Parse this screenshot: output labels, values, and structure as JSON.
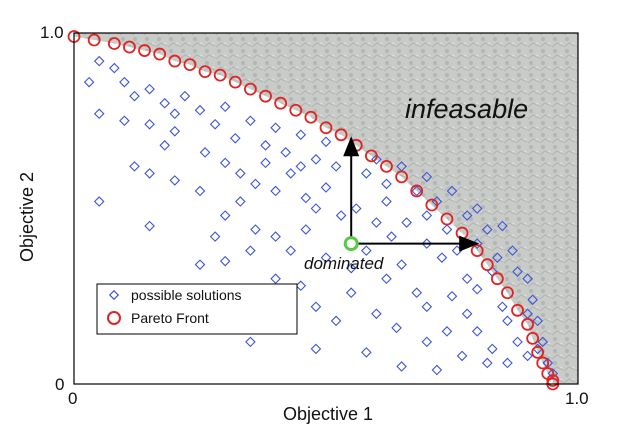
{
  "chart_data": {
    "type": "scatter",
    "xlabel": "Objective 1",
    "ylabel": "Objective 2",
    "xlim": [
      0,
      1.0
    ],
    "ylim": [
      0,
      1.0
    ],
    "x_ticks": [
      "0",
      "1.0"
    ],
    "y_ticks": [
      "0",
      "1.0"
    ],
    "region_label": "infeasable",
    "annotation": "dominated",
    "dominated_point": {
      "x": 0.55,
      "y": 0.4
    },
    "legend": {
      "position": "bottom-left",
      "entries": [
        "possible solutions",
        "Pareto Front"
      ]
    },
    "colors": {
      "possible_solutions": "#3d56d6",
      "pareto_front": "#e02424",
      "dominated_marker": "#59c84a",
      "infeasible_region": "#c4c7c4",
      "arrow": "#000000"
    },
    "series": [
      {
        "name": "possible solutions",
        "marker": "diamond",
        "points": [
          [
            0.05,
            0.92
          ],
          [
            0.08,
            0.9
          ],
          [
            0.03,
            0.86
          ],
          [
            0.1,
            0.86
          ],
          [
            0.12,
            0.82
          ],
          [
            0.15,
            0.84
          ],
          [
            0.05,
            0.77
          ],
          [
            0.18,
            0.8
          ],
          [
            0.2,
            0.77
          ],
          [
            0.22,
            0.82
          ],
          [
            0.25,
            0.78
          ],
          [
            0.28,
            0.74
          ],
          [
            0.3,
            0.79
          ],
          [
            0.32,
            0.7
          ],
          [
            0.35,
            0.75
          ],
          [
            0.38,
            0.68
          ],
          [
            0.4,
            0.73
          ],
          [
            0.42,
            0.66
          ],
          [
            0.45,
            0.71
          ],
          [
            0.48,
            0.64
          ],
          [
            0.5,
            0.69
          ],
          [
            0.52,
            0.62
          ],
          [
            0.55,
            0.66
          ],
          [
            0.58,
            0.6
          ],
          [
            0.6,
            0.64
          ],
          [
            0.62,
            0.57
          ],
          [
            0.65,
            0.62
          ],
          [
            0.68,
            0.55
          ],
          [
            0.7,
            0.59
          ],
          [
            0.72,
            0.52
          ],
          [
            0.75,
            0.55
          ],
          [
            0.78,
            0.48
          ],
          [
            0.8,
            0.5
          ],
          [
            0.82,
            0.44
          ],
          [
            0.85,
            0.45
          ],
          [
            0.87,
            0.38
          ],
          [
            0.88,
            0.32
          ],
          [
            0.9,
            0.3
          ],
          [
            0.91,
            0.24
          ],
          [
            0.92,
            0.18
          ],
          [
            0.93,
            0.12
          ],
          [
            0.94,
            0.06
          ],
          [
            0.95,
            0.03
          ],
          [
            0.1,
            0.75
          ],
          [
            0.15,
            0.74
          ],
          [
            0.2,
            0.72
          ],
          [
            0.26,
            0.66
          ],
          [
            0.3,
            0.63
          ],
          [
            0.33,
            0.6
          ],
          [
            0.36,
            0.57
          ],
          [
            0.38,
            0.63
          ],
          [
            0.4,
            0.55
          ],
          [
            0.43,
            0.6
          ],
          [
            0.46,
            0.53
          ],
          [
            0.48,
            0.5
          ],
          [
            0.5,
            0.56
          ],
          [
            0.53,
            0.48
          ],
          [
            0.56,
            0.5
          ],
          [
            0.6,
            0.46
          ],
          [
            0.63,
            0.42
          ],
          [
            0.66,
            0.46
          ],
          [
            0.7,
            0.4
          ],
          [
            0.73,
            0.36
          ],
          [
            0.76,
            0.38
          ],
          [
            0.78,
            0.3
          ],
          [
            0.8,
            0.27
          ],
          [
            0.83,
            0.32
          ],
          [
            0.85,
            0.22
          ],
          [
            0.86,
            0.18
          ],
          [
            0.88,
            0.12
          ],
          [
            0.9,
            0.08
          ],
          [
            0.15,
            0.6
          ],
          [
            0.2,
            0.58
          ],
          [
            0.25,
            0.55
          ],
          [
            0.3,
            0.48
          ],
          [
            0.33,
            0.52
          ],
          [
            0.36,
            0.44
          ],
          [
            0.4,
            0.42
          ],
          [
            0.43,
            0.38
          ],
          [
            0.46,
            0.44
          ],
          [
            0.5,
            0.36
          ],
          [
            0.55,
            0.33
          ],
          [
            0.58,
            0.38
          ],
          [
            0.62,
            0.3
          ],
          [
            0.65,
            0.34
          ],
          [
            0.68,
            0.26
          ],
          [
            0.7,
            0.22
          ],
          [
            0.75,
            0.25
          ],
          [
            0.78,
            0.2
          ],
          [
            0.8,
            0.15
          ],
          [
            0.83,
            0.1
          ],
          [
            0.86,
            0.06
          ],
          [
            0.05,
            0.52
          ],
          [
            0.15,
            0.45
          ],
          [
            0.28,
            0.42
          ],
          [
            0.3,
            0.35
          ],
          [
            0.35,
            0.38
          ],
          [
            0.4,
            0.3
          ],
          [
            0.45,
            0.28
          ],
          [
            0.48,
            0.22
          ],
          [
            0.55,
            0.26
          ],
          [
            0.6,
            0.2
          ],
          [
            0.64,
            0.16
          ],
          [
            0.7,
            0.12
          ],
          [
            0.74,
            0.15
          ],
          [
            0.77,
            0.08
          ],
          [
            0.82,
            0.06
          ],
          [
            0.35,
            0.12
          ],
          [
            0.48,
            0.1
          ],
          [
            0.58,
            0.09
          ],
          [
            0.65,
            0.05
          ],
          [
            0.72,
            0.04
          ],
          [
            0.42,
            0.16
          ],
          [
            0.52,
            0.18
          ],
          [
            0.25,
            0.34
          ],
          [
            0.12,
            0.62
          ],
          [
            0.18,
            0.68
          ],
          [
            0.45,
            0.62
          ],
          [
            0.62,
            0.52
          ],
          [
            0.7,
            0.48
          ],
          [
            0.74,
            0.44
          ],
          [
            0.8,
            0.4
          ],
          [
            0.84,
            0.36
          ],
          [
            0.9,
            0.2
          ],
          [
            0.92,
            0.1
          ]
        ]
      },
      {
        "name": "Pareto Front",
        "marker": "circle",
        "points": [
          [
            0.0,
            0.99
          ],
          [
            0.04,
            0.98
          ],
          [
            0.08,
            0.97
          ],
          [
            0.11,
            0.96
          ],
          [
            0.14,
            0.95
          ],
          [
            0.17,
            0.94
          ],
          [
            0.2,
            0.92
          ],
          [
            0.23,
            0.91
          ],
          [
            0.26,
            0.89
          ],
          [
            0.29,
            0.88
          ],
          [
            0.32,
            0.86
          ],
          [
            0.35,
            0.84
          ],
          [
            0.38,
            0.82
          ],
          [
            0.41,
            0.8
          ],
          [
            0.44,
            0.78
          ],
          [
            0.47,
            0.76
          ],
          [
            0.5,
            0.73
          ],
          [
            0.53,
            0.71
          ],
          [
            0.56,
            0.68
          ],
          [
            0.59,
            0.65
          ],
          [
            0.62,
            0.62
          ],
          [
            0.65,
            0.59
          ],
          [
            0.68,
            0.55
          ],
          [
            0.71,
            0.51
          ],
          [
            0.74,
            0.47
          ],
          [
            0.77,
            0.43
          ],
          [
            0.8,
            0.38
          ],
          [
            0.82,
            0.34
          ],
          [
            0.84,
            0.3
          ],
          [
            0.86,
            0.26
          ],
          [
            0.88,
            0.21
          ],
          [
            0.9,
            0.17
          ],
          [
            0.91,
            0.13
          ],
          [
            0.92,
            0.09
          ],
          [
            0.93,
            0.06
          ],
          [
            0.94,
            0.03
          ],
          [
            0.95,
            0.01
          ],
          [
            0.95,
            0.0
          ]
        ]
      }
    ]
  }
}
